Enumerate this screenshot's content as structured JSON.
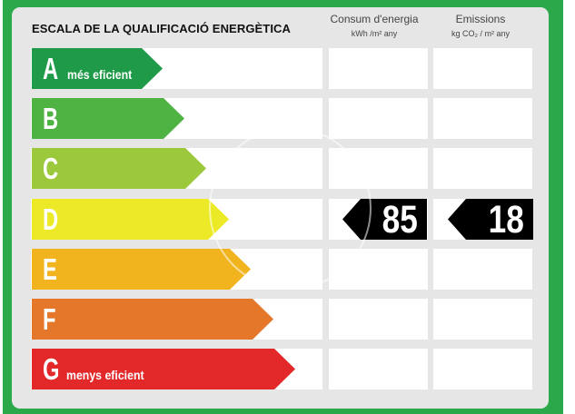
{
  "title": "ESCALA DE LA QUALIFICACIÓ ENERGÈTICA",
  "columns": {
    "consumption": {
      "label": "Consum d'energia",
      "unit": "kWh /m² any"
    },
    "emissions": {
      "label": "Emissions",
      "unit": "kg CO₂ / m² any"
    }
  },
  "ratings": [
    {
      "letter": "A",
      "note": "més eficient",
      "color": "#1e9a48"
    },
    {
      "letter": "B",
      "note": "",
      "color": "#4fb343"
    },
    {
      "letter": "C",
      "note": "",
      "color": "#9cc93c"
    },
    {
      "letter": "D",
      "note": "",
      "color": "#ecea26"
    },
    {
      "letter": "E",
      "note": "",
      "color": "#f1b41f"
    },
    {
      "letter": "F",
      "note": "",
      "color": "#e4772a"
    },
    {
      "letter": "G",
      "note": "menys eficient",
      "color": "#e3282a"
    }
  ],
  "current": {
    "rating": "D",
    "consumption_value": "85",
    "emissions_value": "18"
  }
}
